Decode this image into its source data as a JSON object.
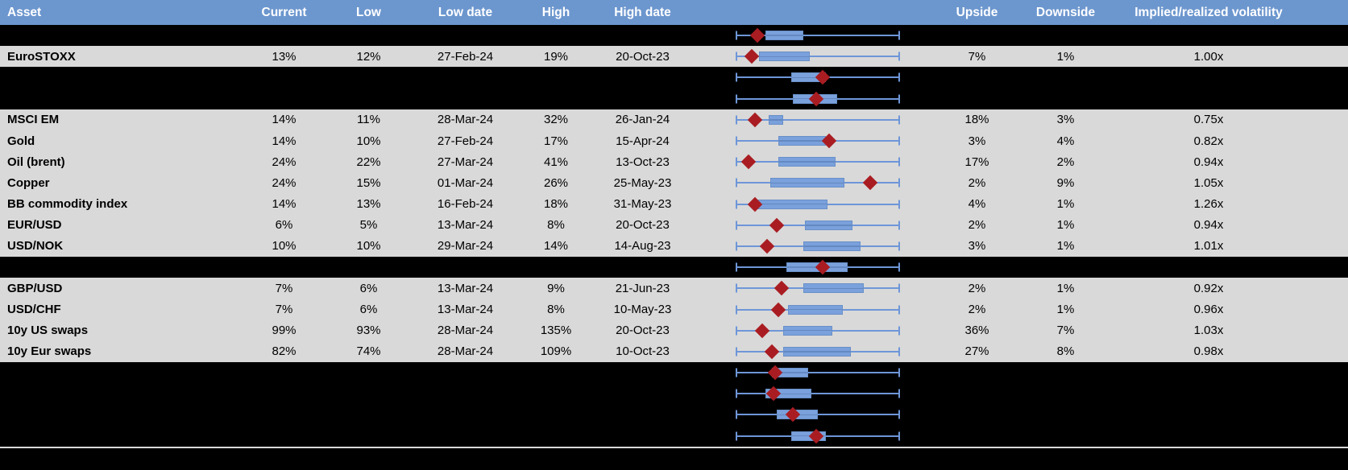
{
  "header": {
    "columns": [
      "Asset",
      "Current",
      "Low",
      "Low date",
      "High",
      "High date",
      "",
      "Upside",
      "Downside",
      "Implied/realized volatility"
    ]
  },
  "colors": {
    "header_blue": "#6C96CE",
    "row_gray": "#D9D9D9",
    "hidden_row_black": "#000000",
    "whisker_blue": "#6E96D8",
    "box_fill_blue": "#7AA1DB",
    "diamond_red": "#A91D22",
    "header_text": "#FFFFFF",
    "body_text": "#000000"
  },
  "rows": [
    {
      "type": "hidden",
      "box": [
        0.18,
        0.41
      ],
      "diamond": 0.13
    },
    {
      "type": "data",
      "asset": "EuroSTOXX",
      "current": "13%",
      "low": "12%",
      "low_date": "27-Feb-24",
      "high": "19%",
      "high_date": "20-Oct-23",
      "upside": "7%",
      "downside": "1%",
      "impl_real": "1.00x",
      "box": [
        0.14,
        0.45
      ],
      "diamond": 0.1
    },
    {
      "type": "hidden",
      "box": [
        0.34,
        0.55
      ],
      "diamond": 0.53
    },
    {
      "type": "hidden",
      "box": [
        0.35,
        0.62
      ],
      "diamond": 0.49
    },
    {
      "type": "data",
      "asset": "MSCI EM",
      "current": "14%",
      "low": "11%",
      "low_date": "28-Mar-24",
      "high": "32%",
      "high_date": "26-Jan-24",
      "upside": "18%",
      "downside": "3%",
      "impl_real": "0.75x",
      "box": [
        0.2,
        0.29
      ],
      "diamond": 0.12
    },
    {
      "type": "data",
      "asset": "Gold",
      "current": "14%",
      "low": "10%",
      "low_date": "27-Feb-24",
      "high": "17%",
      "high_date": "15-Apr-24",
      "upside": "3%",
      "downside": "4%",
      "impl_real": "0.82x",
      "box": [
        0.26,
        0.55
      ],
      "diamond": 0.57
    },
    {
      "type": "data",
      "asset": "Oil (brent)",
      "current": "24%",
      "low": "22%",
      "low_date": "27-Mar-24",
      "high": "41%",
      "high_date": "13-Oct-23",
      "upside": "17%",
      "downside": "2%",
      "impl_real": "0.94x",
      "box": [
        0.26,
        0.61
      ],
      "diamond": 0.08
    },
    {
      "type": "data",
      "asset": "Copper",
      "current": "24%",
      "low": "15%",
      "low_date": "01-Mar-24",
      "high": "26%",
      "high_date": "25-May-23",
      "upside": "2%",
      "downside": "9%",
      "impl_real": "1.05x",
      "box": [
        0.21,
        0.66
      ],
      "diamond": 0.82
    },
    {
      "type": "data",
      "asset": "BB commodity index",
      "current": "14%",
      "low": "13%",
      "low_date": "16-Feb-24",
      "high": "18%",
      "high_date": "31-May-23",
      "upside": "4%",
      "downside": "1%",
      "impl_real": "1.26x",
      "box": [
        0.13,
        0.56
      ],
      "diamond": 0.12
    },
    {
      "type": "data",
      "asset": "EUR/USD",
      "current": "6%",
      "low": "5%",
      "low_date": "13-Mar-24",
      "high": "8%",
      "high_date": "20-Oct-23",
      "upside": "2%",
      "downside": "1%",
      "impl_real": "0.94x",
      "box": [
        0.42,
        0.71
      ],
      "diamond": 0.25
    },
    {
      "type": "data",
      "asset": "USD/NOK",
      "current": "10%",
      "low": "10%",
      "low_date": "29-Mar-24",
      "high": "14%",
      "high_date": "14-Aug-23",
      "upside": "3%",
      "downside": "1%",
      "impl_real": "1.01x",
      "box": [
        0.41,
        0.76
      ],
      "diamond": 0.19
    },
    {
      "type": "hidden",
      "box": [
        0.31,
        0.68
      ],
      "diamond": 0.53
    },
    {
      "type": "data",
      "asset": "GBP/USD",
      "current": "7%",
      "low": "6%",
      "low_date": "13-Mar-24",
      "high": "9%",
      "high_date": "21-Jun-23",
      "upside": "2%",
      "downside": "1%",
      "impl_real": "0.92x",
      "box": [
        0.41,
        0.78
      ],
      "diamond": 0.28
    },
    {
      "type": "data",
      "asset": "USD/CHF",
      "current": "7%",
      "low": "6%",
      "low_date": "13-Mar-24",
      "high": "8%",
      "high_date": "10-May-23",
      "upside": "2%",
      "downside": "1%",
      "impl_real": "0.96x",
      "box": [
        0.32,
        0.65
      ],
      "diamond": 0.26
    },
    {
      "type": "data",
      "asset": "10y US swaps",
      "current": "99%",
      "low": "93%",
      "low_date": "28-Mar-24",
      "high": "135%",
      "high_date": "20-Oct-23",
      "upside": "36%",
      "downside": "7%",
      "impl_real": "1.03x",
      "box": [
        0.29,
        0.59
      ],
      "diamond": 0.16
    },
    {
      "type": "data",
      "asset": "10y Eur swaps",
      "current": "82%",
      "low": "74%",
      "low_date": "28-Mar-24",
      "high": "109%",
      "high_date": "10-Oct-23",
      "upside": "27%",
      "downside": "8%",
      "impl_real": "0.98x",
      "box": [
        0.29,
        0.7
      ],
      "diamond": 0.22
    },
    {
      "type": "hidden",
      "box": [
        0.22,
        0.44
      ],
      "diamond": 0.24
    },
    {
      "type": "hidden",
      "box": [
        0.18,
        0.46
      ],
      "diamond": 0.23
    },
    {
      "type": "hidden",
      "box": [
        0.25,
        0.5
      ],
      "diamond": 0.35
    },
    {
      "type": "hidden",
      "box": [
        0.34,
        0.55
      ],
      "diamond": 0.49
    }
  ],
  "chart_data": {
    "type": "boxplot",
    "orientation": "horizontal",
    "description": "Per-row 1y volatility range: whisker spans Low to High, diamond marker = Current level, box = middle range; normalized 0 = Low, 1 = High",
    "axis_labels_shown": false,
    "series": [
      {
        "row": "hidden",
        "box": [
          0.18,
          0.41
        ],
        "marker": 0.13
      },
      {
        "row": "EuroSTOXX",
        "whisker_min_pct": 12,
        "whisker_max_pct": 19,
        "marker_pct": 13,
        "box": [
          0.14,
          0.45
        ],
        "marker": 0.1
      },
      {
        "row": "hidden",
        "box": [
          0.34,
          0.55
        ],
        "marker": 0.53
      },
      {
        "row": "hidden",
        "box": [
          0.35,
          0.62
        ],
        "marker": 0.49
      },
      {
        "row": "MSCI EM",
        "whisker_min_pct": 11,
        "whisker_max_pct": 32,
        "marker_pct": 14,
        "box": [
          0.2,
          0.29
        ],
        "marker": 0.12
      },
      {
        "row": "Gold",
        "whisker_min_pct": 10,
        "whisker_max_pct": 17,
        "marker_pct": 14,
        "box": [
          0.26,
          0.55
        ],
        "marker": 0.57
      },
      {
        "row": "Oil (brent)",
        "whisker_min_pct": 22,
        "whisker_max_pct": 41,
        "marker_pct": 24,
        "box": [
          0.26,
          0.61
        ],
        "marker": 0.08
      },
      {
        "row": "Copper",
        "whisker_min_pct": 15,
        "whisker_max_pct": 26,
        "marker_pct": 24,
        "box": [
          0.21,
          0.66
        ],
        "marker": 0.82
      },
      {
        "row": "BB commodity index",
        "whisker_min_pct": 13,
        "whisker_max_pct": 18,
        "marker_pct": 14,
        "box": [
          0.13,
          0.56
        ],
        "marker": 0.12
      },
      {
        "row": "EUR/USD",
        "whisker_min_pct": 5,
        "whisker_max_pct": 8,
        "marker_pct": 6,
        "box": [
          0.42,
          0.71
        ],
        "marker": 0.25
      },
      {
        "row": "USD/NOK",
        "whisker_min_pct": 10,
        "whisker_max_pct": 14,
        "marker_pct": 10,
        "box": [
          0.41,
          0.76
        ],
        "marker": 0.19
      },
      {
        "row": "hidden",
        "box": [
          0.31,
          0.68
        ],
        "marker": 0.53
      },
      {
        "row": "GBP/USD",
        "whisker_min_pct": 6,
        "whisker_max_pct": 9,
        "marker_pct": 7,
        "box": [
          0.41,
          0.78
        ],
        "marker": 0.28
      },
      {
        "row": "USD/CHF",
        "whisker_min_pct": 6,
        "whisker_max_pct": 8,
        "marker_pct": 7,
        "box": [
          0.32,
          0.65
        ],
        "marker": 0.26
      },
      {
        "row": "10y US swaps",
        "whisker_min_pct": 93,
        "whisker_max_pct": 135,
        "marker_pct": 99,
        "box": [
          0.29,
          0.59
        ],
        "marker": 0.16
      },
      {
        "row": "10y Eur swaps",
        "whisker_min_pct": 74,
        "whisker_max_pct": 109,
        "marker_pct": 82,
        "box": [
          0.29,
          0.7
        ],
        "marker": 0.22
      },
      {
        "row": "hidden",
        "box": [
          0.22,
          0.44
        ],
        "marker": 0.24
      },
      {
        "row": "hidden",
        "box": [
          0.18,
          0.46
        ],
        "marker": 0.23
      },
      {
        "row": "hidden",
        "box": [
          0.25,
          0.5
        ],
        "marker": 0.35
      },
      {
        "row": "hidden",
        "box": [
          0.34,
          0.55
        ],
        "marker": 0.49
      }
    ]
  }
}
